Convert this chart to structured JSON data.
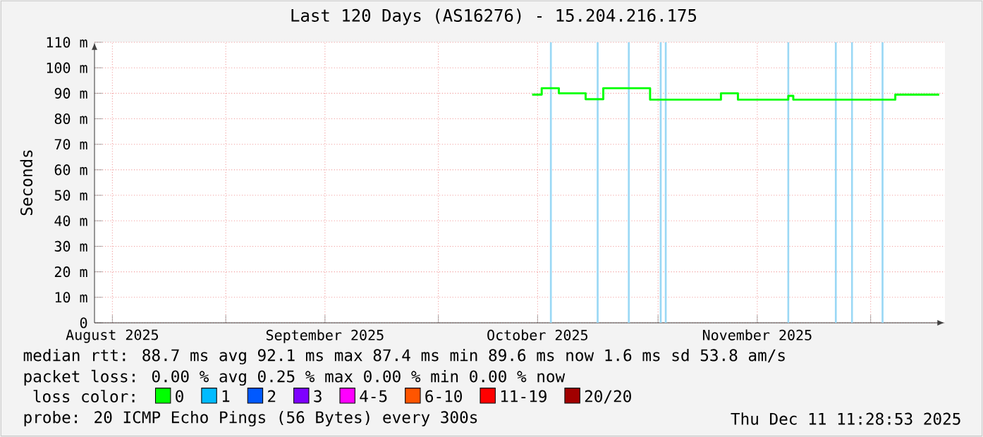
{
  "chart_data": {
    "type": "step",
    "title": "Last 120 Days (AS16276) - 15.204.216.175",
    "ylabel": "Seconds",
    "legend_title": "loss color:",
    "legend": "bottom",
    "grid": true,
    "line_style": "solid",
    "marker": "none",
    "x": [
      "2025-10-14T05:30",
      "2025-10-15T14:00",
      "2025-10-18T00:00",
      "2025-10-21T18:40",
      "2025-10-24T06:30",
      "2025-10-30T21:00",
      "2025-11-09T21:00",
      "2025-11-12T06:30",
      "2025-11-19T09:00",
      "2025-11-20T02:00",
      "2025-12-04T11:30",
      "2025-12-10T16:15"
    ],
    "series": [
      {
        "name": "0",
        "color": "#00ff00",
        "values": [
          89.5,
          92,
          90,
          87.7,
          92,
          87.5,
          90,
          87.5,
          89,
          87.5,
          89.5,
          89.5
        ]
      },
      {
        "name": "1",
        "color": "#00bbff",
        "values": [
          null,
          null,
          null,
          null,
          null,
          null,
          null,
          null,
          null,
          null,
          null,
          null
        ]
      },
      {
        "name": "2",
        "color": "#0059ff",
        "values": [
          null,
          null,
          null,
          null,
          null,
          null,
          null,
          null,
          null,
          null,
          null,
          null
        ]
      },
      {
        "name": "3",
        "color": "#7e00ff",
        "values": [
          null,
          null,
          null,
          null,
          null,
          null,
          null,
          null,
          null,
          null,
          null,
          null
        ]
      },
      {
        "name": "4-5",
        "color": "#ff00ff",
        "values": [
          null,
          null,
          null,
          null,
          null,
          null,
          null,
          null,
          null,
          null,
          null,
          null
        ]
      },
      {
        "name": "6-10",
        "color": "#ff5500",
        "values": [
          null,
          null,
          null,
          null,
          null,
          null,
          null,
          null,
          null,
          null,
          null,
          null
        ]
      },
      {
        "name": "11-19",
        "color": "#ff0000",
        "values": [
          null,
          null,
          null,
          null,
          null,
          null,
          null,
          null,
          null,
          null,
          null,
          null
        ]
      },
      {
        "name": "20/20",
        "color": "#a10000",
        "values": [
          null,
          null,
          null,
          null,
          null,
          null,
          null,
          null,
          null,
          null,
          null,
          null
        ]
      }
    ],
    "xlim": [
      "2025-08-13T11:28",
      "2025-12-11T11:28"
    ],
    "xticks": [
      {
        "value": "2025-08-16",
        "label": "August 2025"
      },
      {
        "value": "2025-09-01",
        "label": null
      },
      {
        "value": "2025-09-15",
        "label": "September 2025"
      },
      {
        "value": "2025-10-01",
        "label": null
      },
      {
        "value": "2025-10-15",
        "label": "October 2025"
      },
      {
        "value": "2025-11-01",
        "label": null
      },
      {
        "value": "2025-11-15",
        "label": "November 2025"
      },
      {
        "value": "2025-12-01",
        "label": null
      }
    ],
    "ylim": [
      0,
      110
    ],
    "yticks": [
      0,
      {
        "value": 10,
        "label": "10 m"
      },
      {
        "value": 20,
        "label": "20 m"
      },
      {
        "value": 30,
        "label": "30 m"
      },
      {
        "value": 40,
        "label": "40 m"
      },
      {
        "value": 50,
        "label": "50 m"
      },
      {
        "value": 60,
        "label": "60 m"
      },
      {
        "value": 70,
        "label": "70 m"
      },
      {
        "value": 80,
        "label": "80 m"
      },
      {
        "value": 90,
        "label": "90 m"
      },
      {
        "value": 100,
        "label": "100 m"
      },
      {
        "value": 110,
        "label": "110 m"
      }
    ],
    "ref_lines": [
      {
        "axis": "x",
        "value": "2025-10-16T21:00",
        "color": "#9ad8f5"
      },
      {
        "axis": "x",
        "value": "2025-10-23T11:30",
        "color": "#9ad8f5"
      },
      {
        "axis": "x",
        "value": "2025-10-27T21:00",
        "color": "#9ad8f5"
      },
      {
        "axis": "x",
        "value": "2025-11-01T09:00",
        "color": "#9ad8f5"
      },
      {
        "axis": "x",
        "value": "2025-11-02T02:00",
        "color": "#9ad8f5"
      },
      {
        "axis": "x",
        "value": "2025-11-19T09:00",
        "color": "#9ad8f5"
      },
      {
        "axis": "x",
        "value": "2025-11-26T02:00",
        "color": "#9ad8f5"
      },
      {
        "axis": "x",
        "value": "2025-11-28T09:00",
        "color": "#9ad8f5"
      },
      {
        "axis": "x",
        "value": "2025-12-02T16:15",
        "color": "#9ad8f5"
      }
    ],
    "annotations": [
      "median rtt:  88.7 ms avg  92.1 ms max  87.4 ms min  89.6 ms now  1.6 ms sd  53.8   am/s",
      "packet loss: 0.00 % avg  0.25 % max  0.00 % min  0.00 % now",
      "probe:        20 ICMP Echo Pings (56 Bytes) every 300s",
      "Thu Dec 11 11:28:53 2025"
    ]
  }
}
